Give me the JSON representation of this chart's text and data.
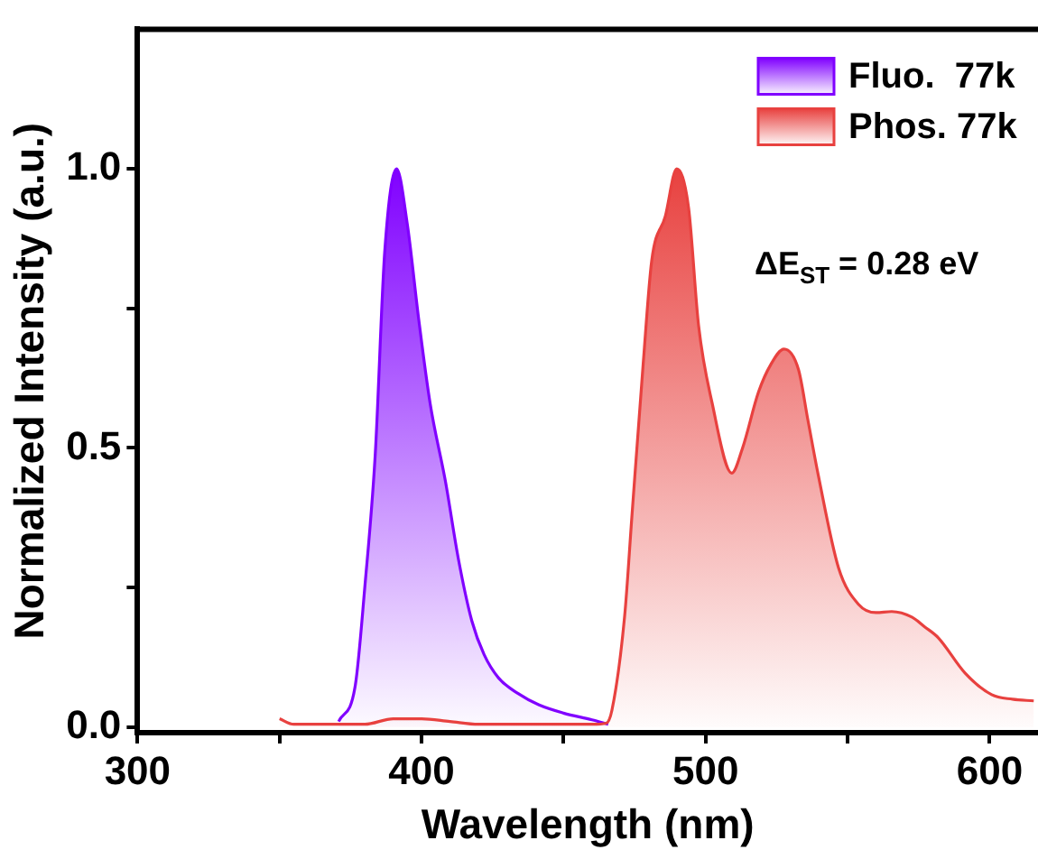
{
  "chart_data": {
    "type": "area",
    "xlabel": "Wavelength (nm)",
    "ylabel": "Normalized Intensity (a.u.)",
    "xlim": [
      300,
      617
    ],
    "ylim": [
      -0.01,
      1.25
    ],
    "xticks": [
      300,
      {
        "value": 350,
        "label": null
      },
      400,
      {
        "value": 450,
        "label": null
      },
      500,
      {
        "value": 550,
        "label": null
      },
      600
    ],
    "yticks": [
      {
        "value": 0,
        "label": "0.0"
      },
      {
        "value": 0.25,
        "label": null
      },
      0.5,
      {
        "value": 0.75,
        "label": null
      },
      {
        "value": 1,
        "label": "1.0"
      }
    ],
    "legend": "top right",
    "grid": false,
    "annotations": [
      "ΔE$_{ST}$ = 0.28 eV"
    ],
    "series": [
      {
        "name": "Fluo.  77k",
        "color": "#8000ff",
        "x": [
          370.8,
          376.7,
          380,
          383.7,
          387,
          391.2,
          395,
          399,
          403,
          408.4,
          413,
          417.7,
          422,
          427.1,
          434,
          441.2,
          450,
          460,
          465.7
        ],
        "values": [
          0.01,
          0.076,
          0.25,
          0.49,
          0.85,
          1.0,
          0.9,
          0.73,
          0.58,
          0.44,
          0.3,
          0.19,
          0.13,
          0.088,
          0.06,
          0.04,
          0.025,
          0.013,
          0.005
        ]
      },
      {
        "name": "Phos. 77k",
        "color": "#e8413f",
        "x": [
          350,
          355,
          365,
          380,
          390,
          400,
          410,
          420,
          440,
          460,
          465,
          467,
          471.5,
          474,
          478,
          481,
          485.8,
          489.8,
          494,
          497.5,
          502.3,
          509.2,
          513,
          518.6,
          523,
          527.6,
          532.7,
          536,
          539.7,
          546.8,
          553.8,
          560,
          565.5,
          572.6,
          577,
          581.9,
          591.3,
          600.7,
          608,
          615.5
        ],
        "values": [
          0.015,
          0.005,
          0.005,
          0.005,
          0.015,
          0.015,
          0.01,
          0.005,
          0.005,
          0.005,
          0.007,
          0.03,
          0.2,
          0.375,
          0.65,
          0.835,
          0.915,
          1.0,
          0.93,
          0.72,
          0.58,
          0.455,
          0.5,
          0.6,
          0.65,
          0.677,
          0.64,
          0.55,
          0.45,
          0.285,
          0.22,
          0.205,
          0.207,
          0.197,
          0.18,
          0.16,
          0.097,
          0.058,
          0.05,
          0.047
        ]
      }
    ]
  }
}
